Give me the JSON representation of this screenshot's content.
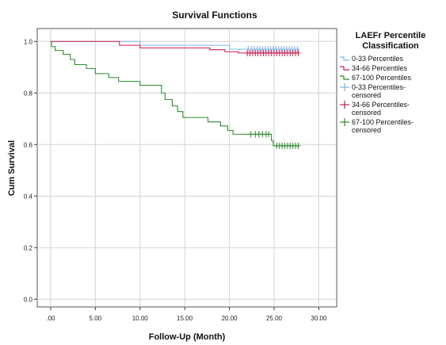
{
  "chart_data": {
    "type": "line",
    "title": "Survival Functions",
    "xlabel": "Follow-Up (Month)",
    "ylabel": "Cum Survival",
    "xlim": [
      -1.5,
      32
    ],
    "ylim": [
      -0.03,
      1.05
    ],
    "x_ticks": [
      0,
      5,
      10,
      15,
      20,
      25,
      30
    ],
    "x_tick_labels": [
      ".00",
      "5.00",
      "10.00",
      "15.00",
      "20.00",
      "25.00",
      "30.00"
    ],
    "y_ticks": [
      0.0,
      0.2,
      0.4,
      0.6,
      0.8,
      1.0
    ],
    "y_tick_labels": [
      "0.0",
      "0.2",
      "0.4",
      "0.6",
      "0.8",
      "1.0"
    ],
    "grid": true,
    "legend_title": "LAEFr Percentile Classification",
    "legend_title_lines": [
      "LAEFr Percentile",
      "Classification"
    ],
    "legend_position": "right",
    "series": [
      {
        "name": "0-33 Percentiles",
        "censored_name": "0-33 Percentiles-censored",
        "color": "#7fb3e6",
        "steps": [
          [
            0,
            1.0
          ],
          [
            10,
            0.985
          ],
          [
            20,
            0.97
          ],
          [
            27.8,
            0.97
          ]
        ],
        "censored_x": [
          22.1,
          22.5,
          22.8,
          23.1,
          23.4,
          23.7,
          24.0,
          24.3,
          24.6,
          24.9,
          25.2,
          25.5,
          25.8,
          26.1,
          26.4,
          26.7,
          27.0,
          27.3,
          27.6
        ],
        "censored_y": 0.97
      },
      {
        "name": "34-66 Percentiles",
        "censored_name": "34-66 Percentiles-censored",
        "color": "#cc1f4a",
        "steps": [
          [
            0,
            1.0
          ],
          [
            7.7,
            0.985
          ],
          [
            10,
            0.975
          ],
          [
            17.8,
            0.968
          ],
          [
            19.5,
            0.96
          ],
          [
            21,
            0.955
          ],
          [
            27.8,
            0.955
          ]
        ],
        "censored_x": [
          22.0,
          22.3,
          22.6,
          22.9,
          23.2,
          23.5,
          23.8,
          24.1,
          24.4,
          24.7,
          25.0,
          25.3,
          25.6,
          25.9,
          26.2,
          26.5,
          26.8,
          27.1,
          27.4,
          27.7
        ],
        "censored_y": 0.955
      },
      {
        "name": "67-100 Percentiles",
        "censored_name": "67-100 Percentiles-censored",
        "color": "#2e8a2e",
        "steps": [
          [
            0,
            1.0
          ],
          [
            0.1,
            0.98
          ],
          [
            0.5,
            0.965
          ],
          [
            1.4,
            0.95
          ],
          [
            2.2,
            0.93
          ],
          [
            2.7,
            0.91
          ],
          [
            4.0,
            0.895
          ],
          [
            5.0,
            0.875
          ],
          [
            6.5,
            0.86
          ],
          [
            7.6,
            0.845
          ],
          [
            10.0,
            0.83
          ],
          [
            12.4,
            0.8
          ],
          [
            12.8,
            0.775
          ],
          [
            13.6,
            0.75
          ],
          [
            14.2,
            0.728
          ],
          [
            14.8,
            0.705
          ],
          [
            17.6,
            0.688
          ],
          [
            19.0,
            0.672
          ],
          [
            19.8,
            0.655
          ],
          [
            20.4,
            0.64
          ],
          [
            24.7,
            0.615
          ],
          [
            24.9,
            0.595
          ],
          [
            27.8,
            0.595
          ]
        ],
        "censored_x": [
          22.4,
          22.9,
          23.3,
          23.7,
          24.1,
          24.4,
          25.3,
          25.6,
          25.9,
          26.2,
          26.5,
          26.8,
          27.1,
          27.4,
          27.7
        ],
        "censored_y": [
          0.64,
          0.64,
          0.64,
          0.64,
          0.64,
          0.64,
          0.595,
          0.595,
          0.595,
          0.595,
          0.595,
          0.595,
          0.595,
          0.595,
          0.595
        ]
      }
    ]
  }
}
